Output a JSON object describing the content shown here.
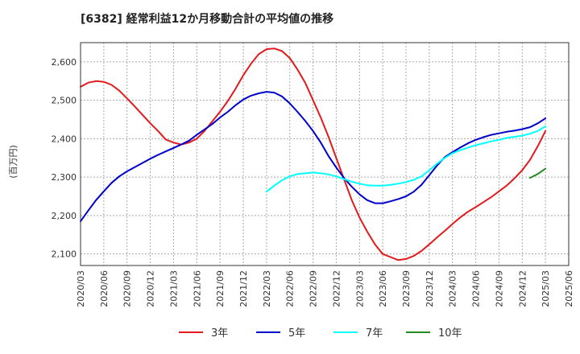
{
  "chart_data": {
    "type": "line",
    "title": "[6382]  経常利益12か月移動合計の平均値の推移",
    "ylabel": "(百万円)",
    "xlabel": "",
    "ylim": [
      2070,
      2650
    ],
    "xlim": [
      "2020-03",
      "2025-06"
    ],
    "y_ticks": [
      "2,100",
      "2,200",
      "2,300",
      "2,400",
      "2,500",
      "2,600"
    ],
    "x_ticks": [
      "2020/03",
      "2020/06",
      "2020/09",
      "2020/12",
      "2021/03",
      "2021/06",
      "2021/09",
      "2021/12",
      "2022/03",
      "2022/06",
      "2022/09",
      "2022/12",
      "2023/03",
      "2023/06",
      "2023/09",
      "2023/12",
      "2024/03",
      "2024/06",
      "2024/09",
      "2024/12",
      "2025/03",
      "2025/06"
    ],
    "grid": true,
    "legend_position": "bottom",
    "series": [
      {
        "name": "3年",
        "color": "#e31a1c",
        "x": [
          "2020-03",
          "2020-04",
          "2020-05",
          "2020-06",
          "2020-07",
          "2020-08",
          "2020-09",
          "2020-10",
          "2020-11",
          "2020-12",
          "2021-01",
          "2021-02",
          "2021-03",
          "2021-04",
          "2021-05",
          "2021-06",
          "2021-07",
          "2021-08",
          "2021-09",
          "2021-10",
          "2021-11",
          "2021-12",
          "2022-01",
          "2022-02",
          "2022-03",
          "2022-04",
          "2022-05",
          "2022-06",
          "2022-07",
          "2022-08",
          "2022-09",
          "2022-10",
          "2022-11",
          "2022-12",
          "2023-01",
          "2023-02",
          "2023-03",
          "2023-04",
          "2023-05",
          "2023-06",
          "2023-07",
          "2023-08",
          "2023-09",
          "2023-10",
          "2023-11",
          "2023-12",
          "2024-01",
          "2024-02",
          "2024-03",
          "2024-04",
          "2024-05",
          "2024-06",
          "2024-07",
          "2024-08",
          "2024-09",
          "2024-10",
          "2024-11",
          "2024-12",
          "2025-01",
          "2025-02",
          "2025-03"
        ],
        "values": [
          2535,
          2546,
          2550,
          2548,
          2540,
          2525,
          2505,
          2484,
          2462,
          2440,
          2420,
          2398,
          2390,
          2385,
          2390,
          2400,
          2420,
          2445,
          2470,
          2498,
          2530,
          2565,
          2595,
          2620,
          2633,
          2635,
          2628,
          2610,
          2580,
          2545,
          2500,
          2455,
          2405,
          2350,
          2295,
          2240,
          2195,
          2158,
          2125,
          2100,
          2092,
          2084,
          2087,
          2095,
          2108,
          2125,
          2143,
          2160,
          2178,
          2195,
          2210,
          2222,
          2235,
          2248,
          2263,
          2278,
          2297,
          2318,
          2345,
          2380,
          2420
        ]
      },
      {
        "name": "5年",
        "color": "#0000cc",
        "x": [
          "2020-03",
          "2020-04",
          "2020-05",
          "2020-06",
          "2020-07",
          "2020-08",
          "2020-09",
          "2020-10",
          "2020-11",
          "2020-12",
          "2021-01",
          "2021-02",
          "2021-03",
          "2021-04",
          "2021-05",
          "2021-06",
          "2021-07",
          "2021-08",
          "2021-09",
          "2021-10",
          "2021-11",
          "2021-12",
          "2022-01",
          "2022-02",
          "2022-03",
          "2022-04",
          "2022-05",
          "2022-06",
          "2022-07",
          "2022-08",
          "2022-09",
          "2022-10",
          "2022-11",
          "2022-12",
          "2023-01",
          "2023-02",
          "2023-03",
          "2023-04",
          "2023-05",
          "2023-06",
          "2023-07",
          "2023-08",
          "2023-09",
          "2023-10",
          "2023-11",
          "2023-12",
          "2024-01",
          "2024-02",
          "2024-03",
          "2024-04",
          "2024-05",
          "2024-06",
          "2024-07",
          "2024-08",
          "2024-09",
          "2024-10",
          "2024-11",
          "2024-12",
          "2025-01",
          "2025-02",
          "2025-03"
        ],
        "values": [
          2185,
          2213,
          2240,
          2263,
          2285,
          2302,
          2315,
          2326,
          2337,
          2348,
          2358,
          2367,
          2376,
          2385,
          2395,
          2410,
          2424,
          2438,
          2455,
          2470,
          2487,
          2502,
          2512,
          2518,
          2522,
          2520,
          2510,
          2492,
          2470,
          2446,
          2420,
          2390,
          2355,
          2325,
          2298,
          2275,
          2255,
          2240,
          2232,
          2232,
          2237,
          2243,
          2250,
          2262,
          2280,
          2305,
          2330,
          2352,
          2365,
          2377,
          2388,
          2397,
          2404,
          2410,
          2414,
          2418,
          2421,
          2425,
          2430,
          2440,
          2453
        ]
      },
      {
        "name": "7年",
        "color": "#00ffff",
        "x": [
          "2022-03",
          "2022-04",
          "2022-05",
          "2022-06",
          "2022-07",
          "2022-08",
          "2022-09",
          "2022-10",
          "2022-11",
          "2022-12",
          "2023-01",
          "2023-02",
          "2023-03",
          "2023-04",
          "2023-05",
          "2023-06",
          "2023-07",
          "2023-08",
          "2023-09",
          "2023-10",
          "2023-11",
          "2023-12",
          "2024-01",
          "2024-02",
          "2024-03",
          "2024-04",
          "2024-05",
          "2024-06",
          "2024-07",
          "2024-08",
          "2024-09",
          "2024-10",
          "2024-11",
          "2024-12",
          "2025-01",
          "2025-02",
          "2025-03"
        ],
        "values": [
          2262,
          2278,
          2292,
          2302,
          2308,
          2310,
          2312,
          2310,
          2307,
          2302,
          2295,
          2288,
          2283,
          2279,
          2278,
          2278,
          2280,
          2283,
          2287,
          2293,
          2302,
          2318,
          2335,
          2350,
          2362,
          2370,
          2377,
          2383,
          2388,
          2393,
          2397,
          2402,
          2405,
          2408,
          2413,
          2420,
          2432
        ]
      },
      {
        "name": "10年",
        "color": "#228b22",
        "x": [
          "2025-01",
          "2025-02",
          "2025-03"
        ],
        "values": [
          2298,
          2308,
          2322
        ]
      }
    ]
  }
}
